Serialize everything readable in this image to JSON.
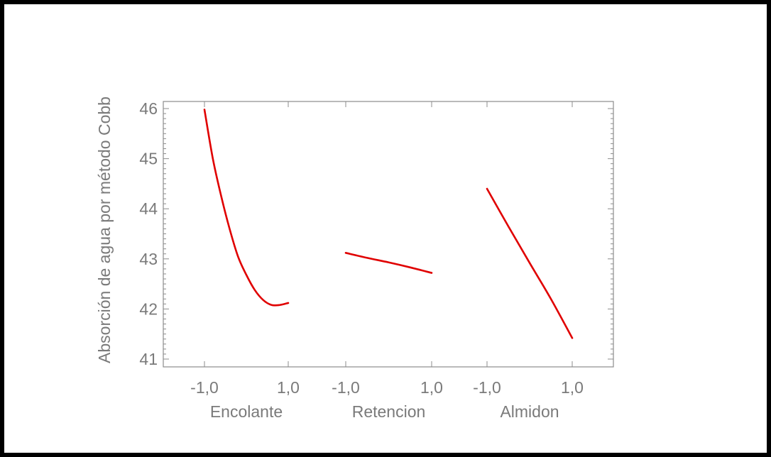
{
  "chart_data": {
    "type": "line",
    "title": "",
    "ylabel": "Absorción de agua por método Cobb",
    "ylim": [
      41,
      46
    ],
    "y_ticks": [
      "41",
      "42",
      "43",
      "44",
      "45",
      "46"
    ],
    "y_tick_values": [
      41,
      42,
      43,
      44,
      45,
      46
    ],
    "line_color": "#e00000",
    "axis_color": "#8c8c8c",
    "text_color": "#7a7a7a",
    "grid": false,
    "panels": [
      {
        "factor": "Encolante",
        "x_tick_labels": [
          "-1,0",
          "1,0"
        ],
        "x": [
          -1.0,
          -0.8,
          -0.6,
          -0.4,
          -0.2,
          0.0,
          0.2,
          0.4,
          0.6,
          0.8,
          1.0
        ],
        "y": [
          45.98,
          45.0,
          44.25,
          43.6,
          43.05,
          42.68,
          42.38,
          42.18,
          42.08,
          42.08,
          42.12
        ]
      },
      {
        "factor": "Retencion",
        "x_tick_labels": [
          "-1,0",
          "1,0"
        ],
        "x": [
          -1.0,
          -0.5,
          0.0,
          0.5,
          1.0
        ],
        "y": [
          43.12,
          43.02,
          42.93,
          42.83,
          42.72
        ]
      },
      {
        "factor": "Almidon",
        "x_tick_labels": [
          "-1,0",
          "1,0"
        ],
        "x": [
          -1.0,
          -0.5,
          0.0,
          0.5,
          1.0
        ],
        "y": [
          44.4,
          43.65,
          42.92,
          42.2,
          41.42
        ]
      }
    ]
  }
}
